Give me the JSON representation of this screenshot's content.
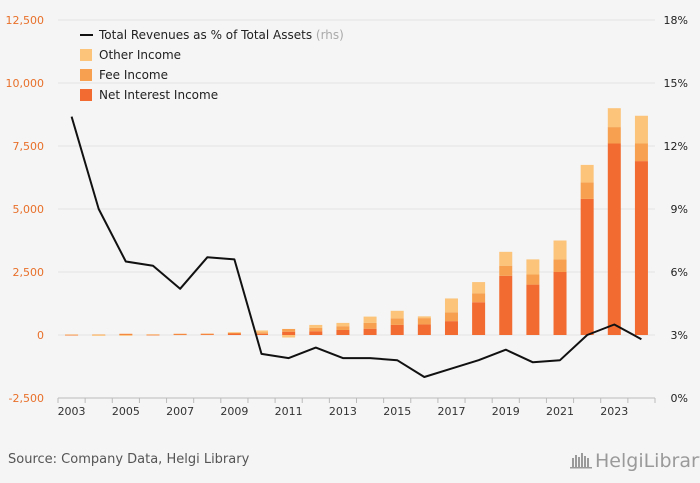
{
  "source": "Source: Company Data, Helgi Library",
  "brand": "HelgiLibrary",
  "colors": {
    "background": "#f5f5f5",
    "grid": "#e4e4e4",
    "net_interest": "#f26b30",
    "fee": "#f7a04f",
    "other": "#fbc47a",
    "line": "#111111",
    "left_axis_text": "#e8702a"
  },
  "chart_data": {
    "type": "bar",
    "stacked": true,
    "title": "",
    "xlabel": "",
    "ylabel": "",
    "categories": [
      "2003",
      "2004",
      "2005",
      "2006",
      "2007",
      "2008",
      "2009",
      "2010",
      "2011",
      "2012",
      "2013",
      "2014",
      "2015",
      "2016",
      "2017",
      "2018",
      "2019",
      "2020",
      "2021",
      "2022",
      "2023",
      "2024"
    ],
    "x_tick_labels": [
      "2003",
      "2005",
      "2007",
      "2009",
      "2011",
      "2013",
      "2015",
      "2017",
      "2019",
      "2021",
      "2023"
    ],
    "ylim": [
      -2500,
      12500
    ],
    "y_ticks": [
      -2500,
      0,
      2500,
      5000,
      7500,
      10000,
      12500
    ],
    "y_tick_labels": [
      "-2,500",
      "0",
      "2,500",
      "5,000",
      "7,500",
      "10,000",
      "12,500"
    ],
    "y2lim": [
      0,
      18
    ],
    "y2_ticks": [
      0,
      3,
      6,
      9,
      12,
      15,
      18
    ],
    "y2_tick_labels": [
      "0%",
      "3%",
      "6%",
      "9%",
      "12%",
      "15%",
      "18%"
    ],
    "grid": true,
    "legend_position": "top-left",
    "series": [
      {
        "name": "Net Interest Income",
        "color": "#f26b30",
        "values": [
          10,
          10,
          30,
          15,
          30,
          35,
          60,
          50,
          130,
          150,
          200,
          250,
          400,
          420,
          550,
          1300,
          2350,
          2000,
          2500,
          5400,
          7600,
          6900
        ]
      },
      {
        "name": "Fee Income",
        "color": "#f7a04f",
        "values": [
          10,
          10,
          20,
          10,
          20,
          20,
          30,
          60,
          110,
          130,
          150,
          230,
          260,
          250,
          350,
          350,
          400,
          400,
          500,
          650,
          650,
          700
        ]
      },
      {
        "name": "Other Income",
        "color": "#fbc47a",
        "values": [
          0,
          -10,
          -10,
          0,
          0,
          0,
          20,
          70,
          -100,
          120,
          130,
          250,
          300,
          70,
          550,
          450,
          550,
          600,
          750,
          700,
          750,
          1100
        ]
      }
    ],
    "line_series": {
      "name": "Total Revenues as % of Total Assets",
      "axis_note": "(rhs)",
      "axis": "right",
      "color": "#111111",
      "values": [
        13.4,
        9.0,
        6.5,
        6.3,
        5.2,
        6.7,
        6.6,
        2.1,
        1.9,
        2.4,
        1.9,
        1.9,
        1.8,
        1.0,
        1.4,
        1.8,
        2.3,
        1.7,
        1.8,
        3.0,
        3.5,
        2.8
      ]
    }
  }
}
